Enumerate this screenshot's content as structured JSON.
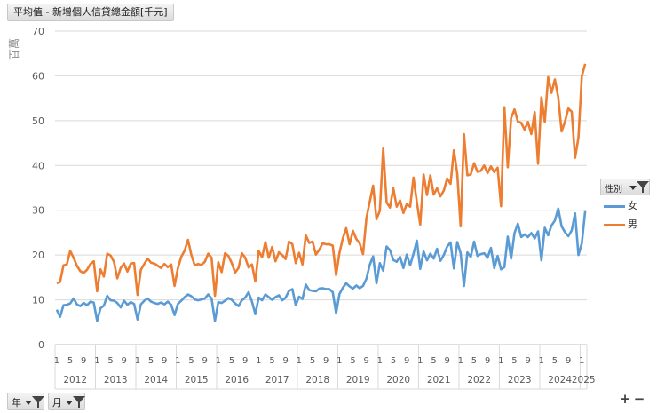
{
  "field_button": {
    "label": "平均值 - 新增個人信貸總金額[千元]"
  },
  "legend": {
    "field_label": "性別",
    "items": [
      {
        "name": "女",
        "color": "#5b9bd5"
      },
      {
        "name": "男",
        "color": "#ed7d31"
      }
    ]
  },
  "axis_filters": [
    {
      "label": "年"
    },
    {
      "label": "月"
    }
  ],
  "controls": {
    "expand": "+",
    "collapse": "−"
  },
  "chart_data": {
    "type": "line",
    "title": "",
    "ylabel": "百萬",
    "ylim": [
      0,
      70
    ],
    "yticks": [
      0,
      10,
      20,
      30,
      40,
      50,
      60,
      70
    ],
    "month_tick_labels": [
      "1",
      "5",
      "9"
    ],
    "years": [
      "2012",
      "2013",
      "2014",
      "2015",
      "2016",
      "2017",
      "2018",
      "2019",
      "2020",
      "2021",
      "2022",
      "2023",
      "2024",
      "2025"
    ],
    "months_per_year": [
      12,
      12,
      12,
      12,
      12,
      12,
      12,
      12,
      12,
      12,
      12,
      12,
      12,
      2
    ],
    "series": [
      {
        "name": "女",
        "color": "#5b9bd5",
        "values": [
          7.8,
          6.2,
          8.8,
          8.9,
          9.2,
          10.3,
          9.0,
          8.6,
          9.3,
          8.8,
          9.6,
          9.4,
          5.3,
          8.1,
          8.7,
          10.9,
          9.9,
          9.8,
          9.3,
          8.3,
          9.8,
          8.9,
          9.5,
          9.1,
          5.6,
          9.0,
          9.8,
          10.3,
          9.6,
          9.3,
          9.1,
          9.4,
          9.0,
          9.6,
          8.9,
          6.6,
          9.1,
          9.8,
          10.6,
          11.2,
          10.8,
          10.1,
          9.9,
          10.1,
          10.3,
          11.2,
          10.3,
          5.3,
          9.5,
          9.3,
          9.8,
          10.4,
          10.0,
          9.2,
          8.6,
          9.9,
          10.5,
          11.7,
          9.6,
          6.8,
          10.5,
          9.9,
          11.2,
          10.6,
          10.0,
          10.6,
          11.0,
          9.9,
          10.5,
          12.0,
          12.4,
          8.8,
          10.7,
          10.2,
          13.4,
          12.2,
          12.0,
          11.9,
          12.5,
          12.6,
          12.4,
          12.4,
          11.7,
          7.0,
          11.3,
          12.7,
          13.7,
          13.0,
          12.5,
          13.2,
          12.6,
          13.1,
          14.7,
          17.8,
          19.7,
          13.7,
          18.2,
          16.5,
          21.9,
          21.1,
          18.9,
          18.5,
          19.6,
          17.1,
          20.1,
          17.7,
          20.3,
          23.2,
          16.9,
          20.8,
          18.8,
          20.3,
          19.2,
          21.4,
          18.7,
          20.0,
          21.9,
          22.8,
          17.0,
          22.9,
          20.4,
          13.1,
          20.6,
          19.6,
          23.0,
          19.8,
          20.2,
          20.4,
          19.4,
          21.6,
          17.1,
          19.8,
          16.8,
          17.3,
          24.1,
          19.2,
          24.9,
          27.0,
          24.0,
          24.6,
          24.0,
          24.9,
          23.7,
          25.3,
          18.8,
          26.1,
          24.4,
          26.6,
          27.7,
          30.4,
          26.4,
          25.1,
          24.2,
          25.5,
          29.3,
          20.0,
          22.6,
          29.8
        ]
      },
      {
        "name": "男",
        "color": "#ed7d31",
        "values": [
          13.7,
          14.0,
          17.7,
          17.9,
          20.9,
          19.4,
          17.6,
          16.4,
          16.0,
          16.7,
          18.0,
          18.6,
          11.9,
          16.8,
          15.2,
          20.3,
          19.9,
          18.5,
          14.8,
          17.1,
          18.1,
          16.3,
          18.1,
          18.2,
          11.1,
          16.7,
          18.0,
          19.2,
          18.3,
          18.1,
          17.6,
          17.1,
          18.0,
          17.3,
          17.9,
          13.1,
          17.1,
          19.6,
          21.0,
          23.4,
          20.0,
          17.7,
          18.0,
          17.8,
          18.5,
          20.3,
          19.4,
          10.9,
          18.4,
          16.2,
          20.4,
          19.8,
          18.2,
          16.1,
          17.1,
          20.4,
          19.4,
          17.2,
          17.9,
          14.1,
          20.9,
          19.5,
          22.9,
          19.4,
          21.8,
          18.6,
          20.6,
          20.0,
          19.1,
          23.0,
          22.4,
          18.2,
          20.5,
          17.9,
          24.4,
          22.7,
          23.0,
          20.1,
          21.2,
          22.6,
          22.4,
          22.4,
          22.1,
          15.5,
          20.5,
          23.7,
          26.0,
          22.4,
          25.4,
          23.6,
          22.6,
          20.2,
          28.2,
          31.9,
          35.5,
          28.0,
          29.9,
          43.8,
          31.8,
          30.6,
          34.9,
          30.8,
          32.2,
          29.4,
          31.4,
          30.8,
          37.3,
          31.8,
          26.8,
          38.0,
          33.4,
          37.8,
          33.5,
          34.9,
          33.1,
          34.4,
          37.1,
          35.9,
          43.4,
          38.2,
          26.4,
          47.0,
          37.8,
          38.0,
          40.5,
          38.6,
          38.8,
          40.0,
          38.3,
          39.8,
          38.5,
          39.5,
          30.9,
          53.0,
          39.6,
          50.6,
          52.5,
          49.8,
          49.5,
          48.0,
          49.7,
          47.0,
          51.9,
          40.4,
          55.2,
          49.7,
          59.7,
          56.2,
          59.2,
          55.2,
          47.6,
          49.8,
          52.7,
          52.0,
          41.7,
          46.2,
          59.9,
          62.7
        ]
      }
    ]
  }
}
